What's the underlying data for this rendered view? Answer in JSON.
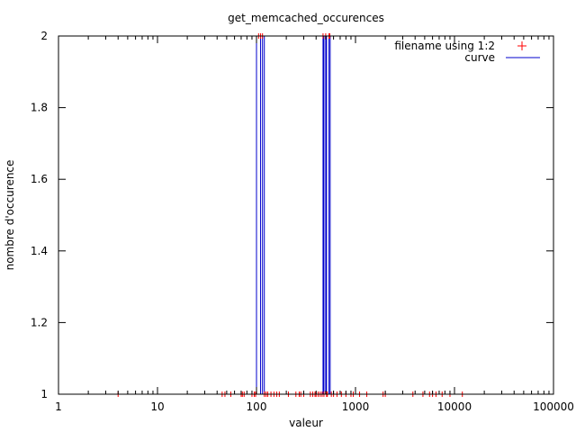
{
  "chart_data": {
    "type": "scatter",
    "title": "get_memcached_occurences",
    "xlabel": "valeur",
    "ylabel": "nombre d'occurence",
    "x_scale": "log",
    "xlim": [
      1,
      100000
    ],
    "ylim": [
      1,
      2
    ],
    "x_ticks": [
      "1",
      "10",
      "100",
      "1000",
      "10000",
      "100000"
    ],
    "x_tick_values": [
      1,
      10,
      100,
      1000,
      10000,
      100000
    ],
    "y_ticks": [
      "1",
      "1.2",
      "1.4",
      "1.6",
      "1.8",
      "2"
    ],
    "y_tick_values": [
      1,
      1.2,
      1.4,
      1.6,
      1.8,
      2
    ],
    "grid": false,
    "legend_position": "top-right",
    "series": [
      {
        "name": "filename using 1:2",
        "style": "points",
        "marker": "+",
        "color": "#ff0000",
        "points": [
          [
            4,
            1
          ],
          [
            45,
            1
          ],
          [
            48,
            1
          ],
          [
            55,
            1
          ],
          [
            70,
            1
          ],
          [
            72,
            1
          ],
          [
            75,
            1
          ],
          [
            90,
            1
          ],
          [
            95,
            1
          ],
          [
            98,
            1
          ],
          [
            105,
            2
          ],
          [
            110,
            2
          ],
          [
            115,
            2
          ],
          [
            120,
            1
          ],
          [
            125,
            1
          ],
          [
            130,
            1
          ],
          [
            140,
            1
          ],
          [
            150,
            1
          ],
          [
            160,
            1
          ],
          [
            170,
            1
          ],
          [
            210,
            1
          ],
          [
            250,
            1
          ],
          [
            270,
            1
          ],
          [
            280,
            1
          ],
          [
            300,
            1
          ],
          [
            350,
            1
          ],
          [
            370,
            1
          ],
          [
            390,
            1
          ],
          [
            400,
            1
          ],
          [
            420,
            1
          ],
          [
            440,
            1
          ],
          [
            460,
            1
          ],
          [
            470,
            2
          ],
          [
            480,
            1
          ],
          [
            500,
            2
          ],
          [
            510,
            1
          ],
          [
            520,
            1
          ],
          [
            540,
            2
          ],
          [
            550,
            2
          ],
          [
            570,
            1
          ],
          [
            600,
            1
          ],
          [
            650,
            1
          ],
          [
            720,
            1
          ],
          [
            800,
            1
          ],
          [
            900,
            1
          ],
          [
            950,
            1
          ],
          [
            1100,
            1
          ],
          [
            1300,
            1
          ],
          [
            1900,
            1
          ],
          [
            2000,
            1
          ],
          [
            3800,
            1
          ],
          [
            4800,
            1
          ],
          [
            5600,
            1
          ],
          [
            6000,
            1
          ],
          [
            6500,
            1
          ],
          [
            7500,
            1
          ],
          [
            9000,
            1
          ],
          [
            12000,
            1
          ]
        ]
      },
      {
        "name": "curve",
        "style": "line",
        "color": "#0000cc",
        "points": [
          [
            1,
            1
          ],
          [
            100,
            1
          ],
          [
            100,
            2
          ],
          [
            110,
            2
          ],
          [
            110,
            1
          ],
          [
            115,
            1
          ],
          [
            115,
            2
          ],
          [
            120,
            2
          ],
          [
            120,
            1
          ],
          [
            470,
            1
          ],
          [
            470,
            2
          ],
          [
            480,
            2
          ],
          [
            480,
            1
          ],
          [
            500,
            1
          ],
          [
            500,
            2
          ],
          [
            510,
            2
          ],
          [
            510,
            1
          ],
          [
            540,
            1
          ],
          [
            540,
            2
          ],
          [
            555,
            2
          ],
          [
            555,
            1
          ],
          [
            100000,
            1
          ]
        ]
      }
    ]
  }
}
